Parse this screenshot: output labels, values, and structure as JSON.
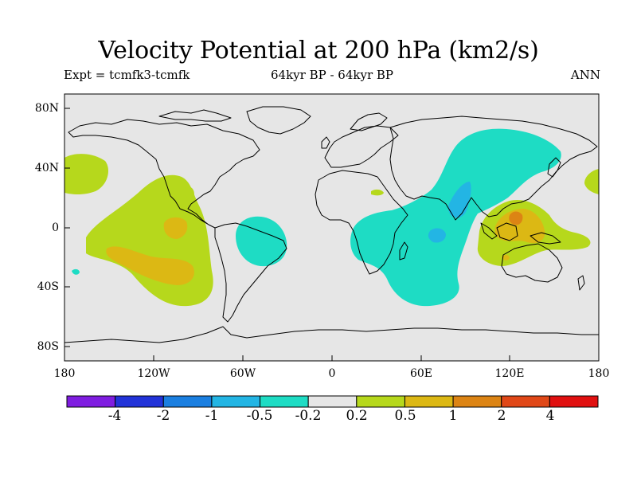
{
  "title": "Velocity Potential at 200 hPa (km2/s)",
  "subtitle_left": "Expt = tcmfk3-tcmfk",
  "subtitle_center": "64kyr BP - 64kyr BP",
  "subtitle_right": "ANN",
  "latitude_ticks": [
    "80N",
    "40N",
    "0",
    "40S",
    "80S"
  ],
  "longitude_ticks": [
    "180",
    "120W",
    "60W",
    "0",
    "60E",
    "120E",
    "180"
  ],
  "colorbar": {
    "labels": [
      "-4",
      "-2",
      "-1",
      "-0.5",
      "-0.2",
      "0.2",
      "0.5",
      "1",
      "2",
      "4"
    ],
    "colors": [
      "#7f1de0",
      "#2233d8",
      "#1b7fe0",
      "#23b5e4",
      "#1edcc4",
      "#e6e6e6",
      "#b6d81c",
      "#dcb814",
      "#dc8414",
      "#e04818",
      "#e01010"
    ]
  },
  "colors": {
    "background": "#e6e6e6",
    "negative_small": "#1edcc4",
    "negative_medium": "#23b5e4",
    "positive_small": "#b6d81c",
    "positive_medium": "#dcb814",
    "positive_large": "#dc8414"
  },
  "chart_data": {
    "type": "filled contour map",
    "variable": "Velocity Potential at 200 hPa",
    "units": "km2/s",
    "projection": "cylindrical equidistant, 180W to 180E, 90S to 90N",
    "levels": [
      -4,
      -2,
      -1,
      -0.5,
      -0.2,
      0.2,
      0.5,
      1,
      2,
      4
    ],
    "regions": [
      {
        "name": "eastern Pacific positive center",
        "level_range": "0.2 to 1",
        "lon_range": [
          -150,
          -100
        ],
        "lat_range": [
          -50,
          30
        ]
      },
      {
        "name": "north Pacific positive lobe (dateline)",
        "level_range": "0.2 to 0.5",
        "lon_range": [
          -180,
          -160
        ],
        "lat_range": [
          20,
          50
        ]
      },
      {
        "name": "South America negative",
        "level_range": "-0.5 to -0.2",
        "lon_range": [
          -65,
          -35
        ],
        "lat_range": [
          -25,
          5
        ]
      },
      {
        "name": "Africa / Indian Ocean / Asia negative band",
        "level_range": "-1 to -0.2",
        "lon_range": [
          5,
          110
        ],
        "lat_range": [
          -55,
          65
        ]
      },
      {
        "name": "Maritime Continent positive center",
        "level_range": "0.2 to 1",
        "lon_range": [
          100,
          150
        ],
        "lat_range": [
          -25,
          20
        ]
      },
      {
        "name": "western Pacific positive lobe (date line)",
        "level_range": "0.2 to 0.5",
        "lon_range": [
          165,
          180
        ],
        "lat_range": [
          25,
          40
        ]
      }
    ]
  }
}
